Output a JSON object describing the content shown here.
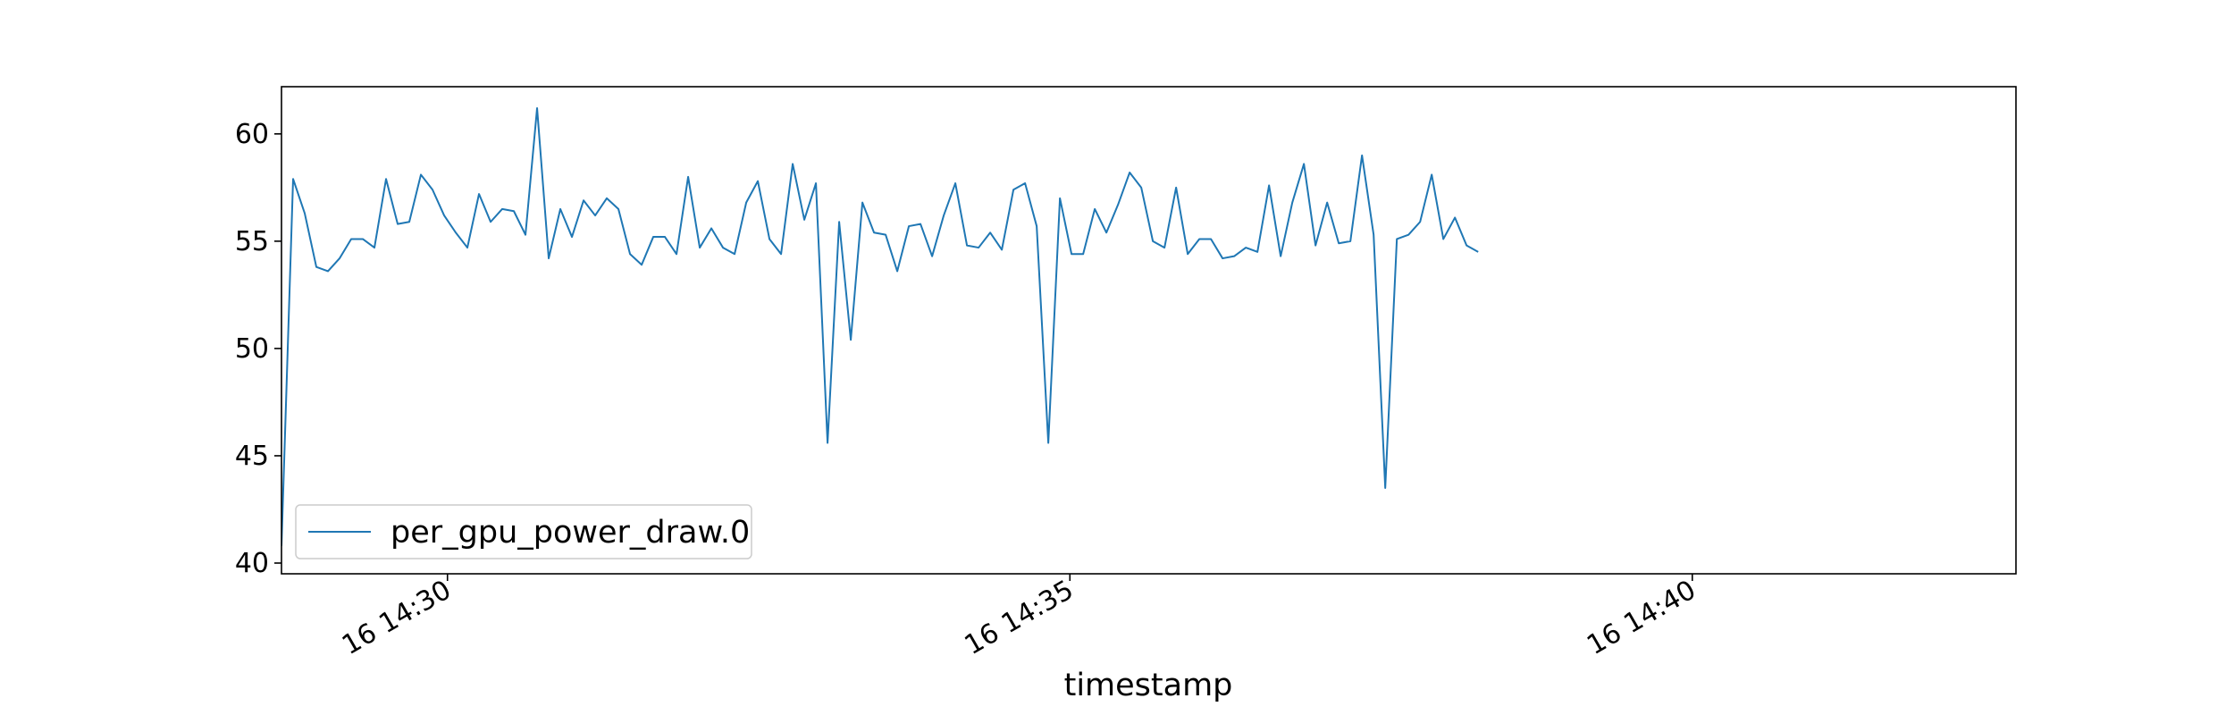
{
  "chart_data": {
    "type": "line",
    "title": "",
    "xlabel": "timestamp",
    "ylabel": "",
    "x_start": "2024-01-16 14:28:40",
    "x_step_seconds": 5.6,
    "xlim": [
      "2024-01-16 14:28:40",
      "2024-01-16 14:42:36"
    ],
    "ylim": [
      39.5,
      62.2
    ],
    "x_ticks": [
      {
        "value": "2024-01-16 14:30:00",
        "label": "16 14:30"
      },
      {
        "value": "2024-01-16 14:35:00",
        "label": "16 14:35"
      },
      {
        "value": "2024-01-16 14:40:00",
        "label": "16 14:40"
      }
    ],
    "y_ticks": [
      40,
      45,
      50,
      55,
      60
    ],
    "grid": false,
    "legend": {
      "position": "lower-left"
    },
    "series": [
      {
        "name": "per_gpu_power_draw.0",
        "color": "#1f77b4",
        "values": [
          40.8,
          57.9,
          56.3,
          53.8,
          53.6,
          54.2,
          55.1,
          55.1,
          54.7,
          57.9,
          55.8,
          55.9,
          58.1,
          57.4,
          56.2,
          55.4,
          54.7,
          57.2,
          55.9,
          56.5,
          56.4,
          55.3,
          61.2,
          54.2,
          56.5,
          55.2,
          56.9,
          56.2,
          57.0,
          56.5,
          54.4,
          53.9,
          55.2,
          55.2,
          54.4,
          58.0,
          54.7,
          55.6,
          54.7,
          54.4,
          56.8,
          57.8,
          55.1,
          54.4,
          58.6,
          56.0,
          57.7,
          45.6,
          55.9,
          50.4,
          56.8,
          55.4,
          55.3,
          53.6,
          55.7,
          55.8,
          54.3,
          56.2,
          57.7,
          54.8,
          54.7,
          55.4,
          54.6,
          57.4,
          57.7,
          55.7,
          45.6,
          57.0,
          54.4,
          54.4,
          56.5,
          55.4,
          56.7,
          58.2,
          57.5,
          55.0,
          54.7,
          57.5,
          54.4,
          55.1,
          55.1,
          54.2,
          54.3,
          54.7,
          54.5,
          57.6,
          54.3,
          56.8,
          58.6,
          54.8,
          56.8,
          54.9,
          55.0,
          59.0,
          55.3,
          43.5,
          55.1,
          55.3,
          55.9,
          58.1,
          55.1,
          56.1,
          54.8,
          54.5
        ]
      }
    ]
  }
}
